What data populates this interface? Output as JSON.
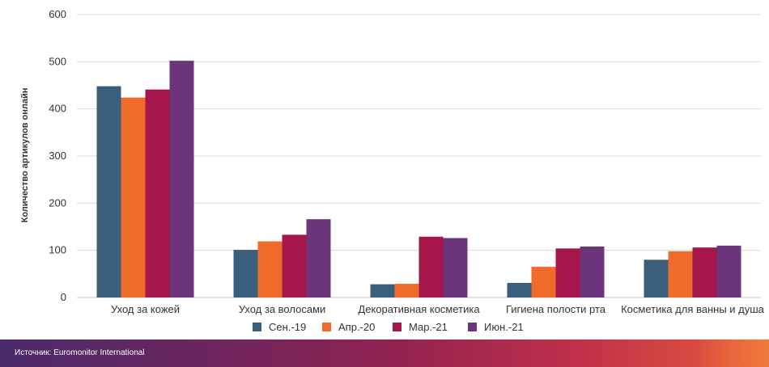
{
  "chart_data": {
    "type": "bar",
    "ylabel": "Количество артикулов онлайн",
    "ylim": [
      0,
      600
    ],
    "yticks": [
      0,
      100,
      200,
      300,
      400,
      500,
      600
    ],
    "grid": true,
    "legend_position": "bottom",
    "categories": [
      "Уход за кожей",
      "Уход за волосами",
      "Декоративная косметика",
      "Гигиена полости рта",
      "Косметика для ванны и душа"
    ],
    "series": [
      {
        "name": "Сен.-19",
        "color": "#3a5f7d",
        "values": [
          448,
          101,
          28,
          31,
          80
        ]
      },
      {
        "name": "Апр.-20",
        "color": "#ef6a2b",
        "values": [
          424,
          119,
          29,
          65,
          98
        ]
      },
      {
        "name": "Мар.-21",
        "color": "#a5174a",
        "values": [
          441,
          133,
          129,
          104,
          106
        ]
      },
      {
        "name": "Июн.-21",
        "color": "#6b347b",
        "values": [
          502,
          166,
          126,
          108,
          110
        ]
      }
    ]
  },
  "footer": {
    "source_text": "Источник: Euromonitor International"
  }
}
